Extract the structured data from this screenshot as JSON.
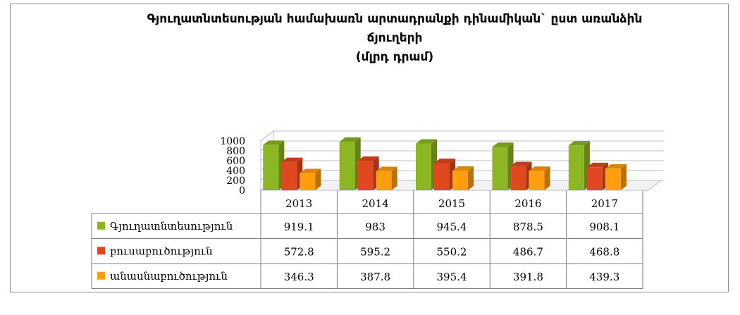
{
  "chart_data": {
    "type": "bar",
    "title_lines": [
      "Գյուղատնտեսության համախառն արտադրանքի դինամիկան` ըստ առանձին",
      "ճյուղերի",
      "(մլրդ դրամ)"
    ],
    "categories": [
      "2013",
      "2014",
      "2015",
      "2016",
      "2017"
    ],
    "series": [
      {
        "name": "Գյուղատնտեսություն",
        "color": "#8db624",
        "values": [
          919.1,
          983,
          945.4,
          878.5,
          908.1
        ],
        "labels": [
          "919.1",
          "983",
          "945.4",
          "878.5",
          "908.1"
        ]
      },
      {
        "name": "բուսաբուծություն",
        "color": "#e0491f",
        "values": [
          572.8,
          595.2,
          550.2,
          486.7,
          468.8
        ],
        "labels": [
          "572.8",
          "595.2",
          "550.2",
          "486.7",
          "468.8"
        ]
      },
      {
        "name": "անասնաբուծություն",
        "color": "#ff9e0f",
        "values": [
          346.3,
          387.8,
          395.4,
          391.8,
          439.3
        ],
        "labels": [
          "346.3",
          "387.8",
          "395.4",
          "391.8",
          "439.3"
        ]
      }
    ],
    "yticks": [
      "0",
      "200",
      "400",
      "600",
      "800",
      "1000"
    ],
    "ylim": [
      0,
      1000
    ],
    "grid": true,
    "legend": "data-table"
  }
}
